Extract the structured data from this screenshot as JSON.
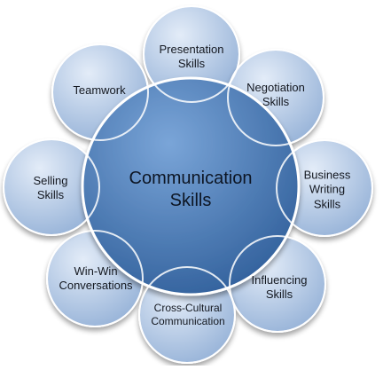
{
  "center": {
    "label": "Communication\nSkills"
  },
  "skills": [
    {
      "label": "Presentation\nSkills"
    },
    {
      "label": "Negotiation\nSkills"
    },
    {
      "label": "Business\nWriting\nSkills"
    },
    {
      "label": "Influencing\nSkills"
    },
    {
      "label": "Cross-Cultural\nCommunication"
    },
    {
      "label": "Win-Win\nConversations"
    },
    {
      "label": "Selling\nSkills"
    },
    {
      "label": "Teamwork"
    }
  ],
  "colors": {
    "center_fill_light": "#6f9bd0",
    "center_fill_dark": "#2f5f9d",
    "outer_fill_light": "#d4e2f3",
    "outer_fill_dark": "#9cb7da",
    "outline": "#ffffff"
  }
}
